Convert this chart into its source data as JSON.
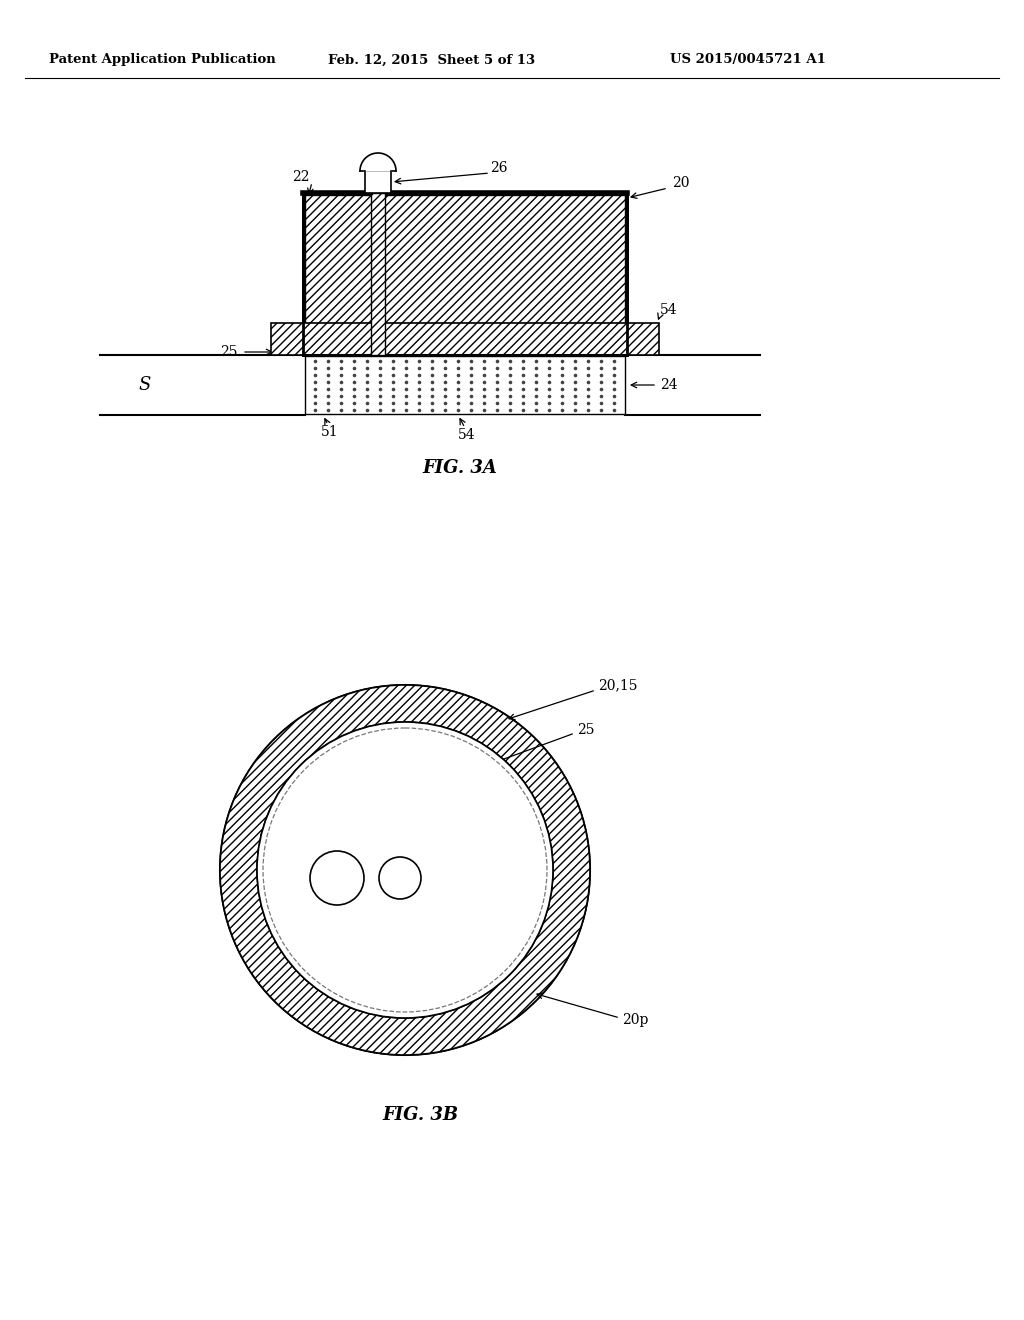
{
  "header_left": "Patent Application Publication",
  "header_center": "Feb. 12, 2015  Sheet 5 of 13",
  "header_right": "US 2015/0045721 A1",
  "fig3a_label": "FIG. 3A",
  "fig3b_label": "FIG. 3B",
  "bg_color": "#ffffff",
  "line_color": "#000000"
}
